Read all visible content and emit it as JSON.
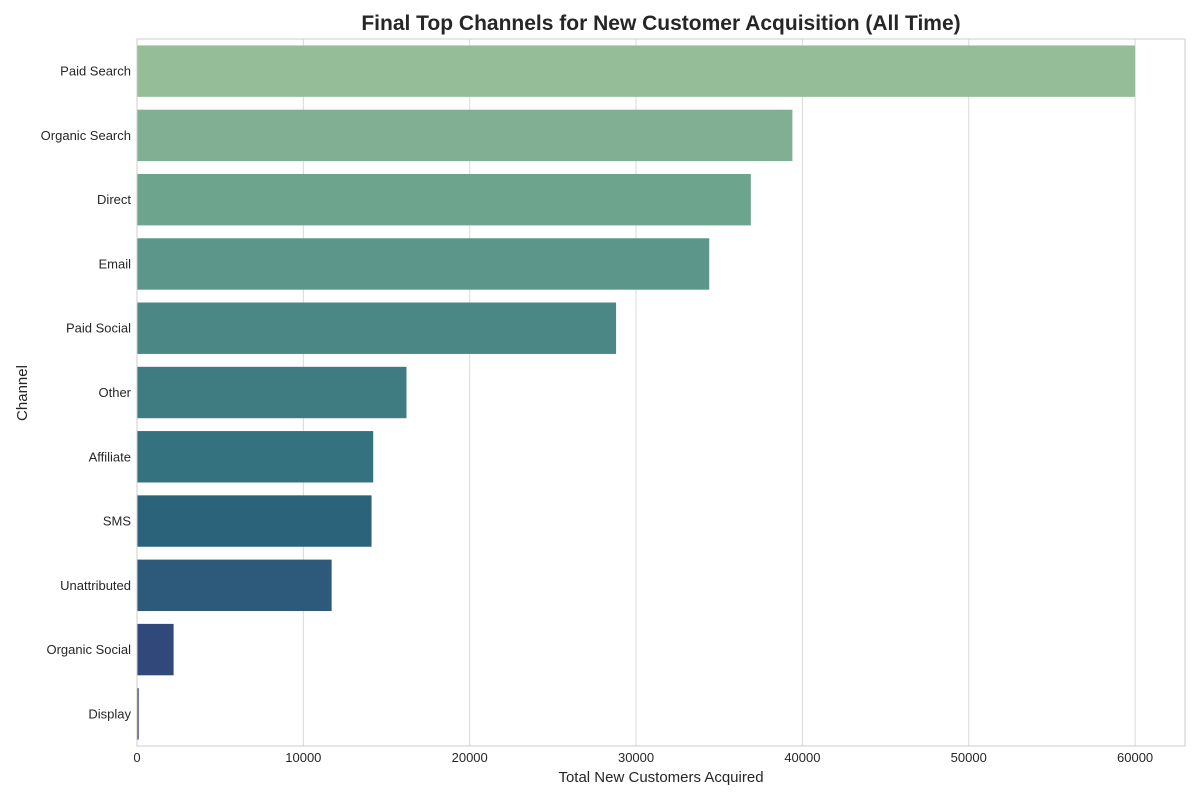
{
  "chart_data": {
    "type": "bar",
    "orientation": "horizontal",
    "title": "Final Top Channels for New Customer Acquisition (All Time)",
    "xlabel": "Total New Customers Acquired",
    "ylabel": "Channel",
    "xlim": [
      0,
      63000
    ],
    "xticks": [
      0,
      10000,
      20000,
      30000,
      40000,
      50000,
      60000
    ],
    "grid": true,
    "categories": [
      "Paid Search",
      "Organic Search",
      "Direct",
      "Email",
      "Paid Social",
      "Other",
      "Affiliate",
      "SMS",
      "Unattributed",
      "Organic Social",
      "Display"
    ],
    "values": [
      60000,
      39400,
      36900,
      34400,
      28800,
      16200,
      14200,
      14100,
      11700,
      2200,
      100
    ],
    "colors": [
      "#95bd98",
      "#81af94",
      "#6ca48e",
      "#5c968a",
      "#4b8885",
      "#3e7c82",
      "#34727f",
      "#2b637b",
      "#2d5a7b",
      "#30497a",
      "#313b74"
    ]
  }
}
